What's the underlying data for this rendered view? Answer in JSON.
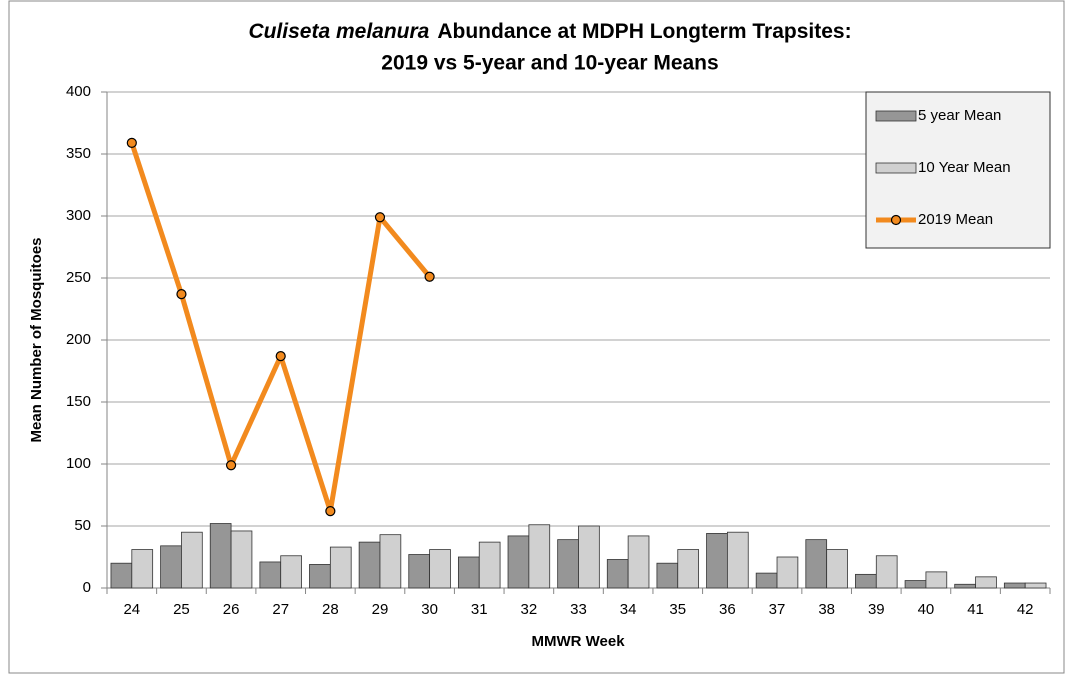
{
  "chart_data": {
    "type": "bar",
    "title_italic": "Culiseta melanura",
    "title_rest": "Abundance at MDPH Longterm Trapsites:",
    "title_line2": "2019 vs 5-year and 10-year Means",
    "x_label": "MMWR Week",
    "y_label": "Mean Number of Mosquitoes",
    "categories": [
      "24",
      "25",
      "26",
      "27",
      "28",
      "29",
      "30",
      "31",
      "32",
      "33",
      "34",
      "35",
      "36",
      "37",
      "38",
      "39",
      "40",
      "41",
      "42"
    ],
    "series": [
      {
        "name": "5 year Mean",
        "kind": "bar",
        "color": "#969696",
        "values": [
          20,
          34,
          52,
          21,
          19,
          37,
          27,
          25,
          42,
          39,
          23,
          20,
          44,
          12,
          39,
          11,
          6,
          3,
          4
        ]
      },
      {
        "name": "10 Year Mean",
        "kind": "bar",
        "color": "#d0d0d0",
        "values": [
          31,
          45,
          46,
          26,
          33,
          43,
          31,
          37,
          51,
          50,
          42,
          31,
          45,
          25,
          31,
          26,
          13,
          9,
          4
        ]
      },
      {
        "name": "2019 Mean",
        "kind": "line",
        "color": "#f28a1e",
        "values": [
          359,
          237,
          99,
          187,
          62,
          299,
          251,
          null,
          null,
          null,
          null,
          null,
          null,
          null,
          null,
          null,
          null,
          null,
          null
        ]
      }
    ],
    "ylim": [
      0,
      400
    ],
    "yticks": [
      0,
      50,
      100,
      150,
      200,
      250,
      300,
      350,
      400
    ],
    "grid": true,
    "legend": "top-right"
  }
}
